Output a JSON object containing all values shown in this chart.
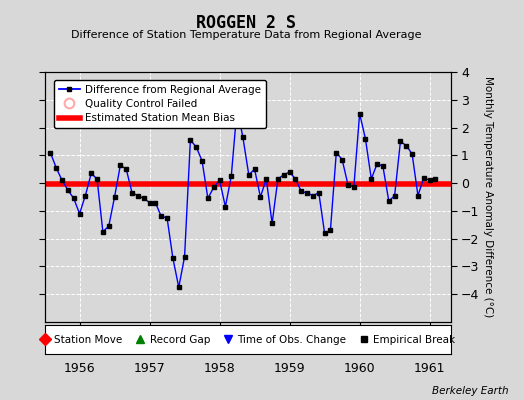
{
  "title": "ROGGEN 2 S",
  "subtitle": "Difference of Station Temperature Data from Regional Average",
  "ylabel_right": "Monthly Temperature Anomaly Difference (°C)",
  "background_color": "#d8d8d8",
  "plot_bg_color": "#d8d8d8",
  "bias_line_value": -0.02,
  "xlim": [
    1955.5,
    1961.3
  ],
  "ylim": [
    -5,
    4
  ],
  "yticks": [
    -4,
    -3,
    -2,
    -1,
    0,
    1,
    2,
    3,
    4
  ],
  "xticks": [
    1956,
    1957,
    1958,
    1959,
    1960,
    1961
  ],
  "watermark": "Berkeley Earth",
  "time_series_x": [
    1955.583,
    1955.667,
    1955.75,
    1955.833,
    1955.917,
    1956.0,
    1956.083,
    1956.167,
    1956.25,
    1956.333,
    1956.417,
    1956.5,
    1956.583,
    1956.667,
    1956.75,
    1956.833,
    1956.917,
    1957.0,
    1957.083,
    1957.167,
    1957.25,
    1957.333,
    1957.417,
    1957.5,
    1957.583,
    1957.667,
    1957.75,
    1957.833,
    1957.917,
    1958.0,
    1958.083,
    1958.167,
    1958.25,
    1958.333,
    1958.417,
    1958.5,
    1958.583,
    1958.667,
    1958.75,
    1958.833,
    1958.917,
    1959.0,
    1959.083,
    1959.167,
    1959.25,
    1959.333,
    1959.417,
    1959.5,
    1959.583,
    1959.667,
    1959.75,
    1959.833,
    1959.917,
    1960.0,
    1960.083,
    1960.167,
    1960.25,
    1960.333,
    1960.417,
    1960.5,
    1960.583,
    1960.667,
    1960.75,
    1960.833,
    1960.917,
    1961.0,
    1961.083
  ],
  "time_series_y": [
    1.1,
    0.55,
    0.1,
    -0.25,
    -0.55,
    -1.1,
    -0.45,
    0.35,
    0.15,
    -1.75,
    -1.55,
    -0.5,
    0.65,
    0.5,
    -0.35,
    -0.45,
    -0.55,
    -0.7,
    -0.7,
    -1.2,
    -1.25,
    -2.7,
    -3.75,
    -2.65,
    1.55,
    1.3,
    0.8,
    -0.55,
    -0.15,
    0.1,
    -0.85,
    0.25,
    2.7,
    1.65,
    0.3,
    0.5,
    -0.5,
    0.15,
    -1.45,
    0.15,
    0.3,
    0.4,
    0.15,
    -0.3,
    -0.35,
    -0.45,
    -0.35,
    -1.8,
    -1.7,
    1.1,
    0.85,
    -0.05,
    -0.15,
    2.5,
    1.6,
    0.15,
    0.7,
    0.6,
    -0.65,
    -0.45,
    1.5,
    1.35,
    1.05,
    -0.45,
    0.2,
    0.1,
    0.15
  ]
}
